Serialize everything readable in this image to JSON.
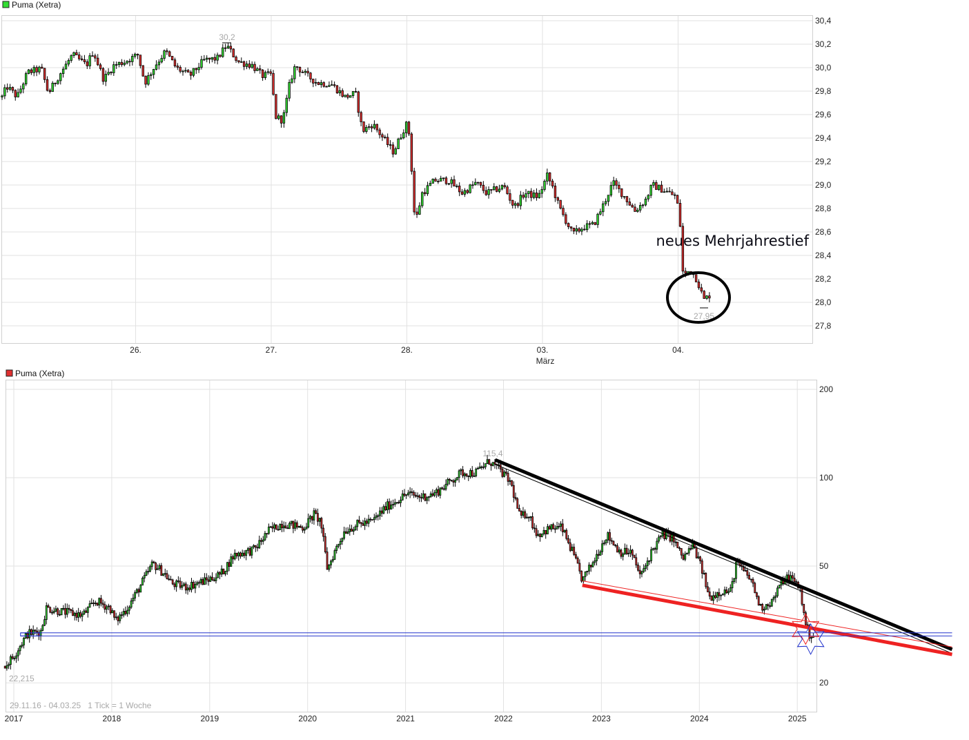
{
  "chart_data": [
    {
      "type": "candlestick",
      "legend": "Puma (Xetra)",
      "legend_color": "#33dd33",
      "x_tick_labels": [
        "26.",
        "27.",
        "28.",
        "03.",
        "04."
      ],
      "x_sub_label": "März",
      "y_tick_labels": [
        "30,4",
        "30,2",
        "30,0",
        "29,8",
        "29,6",
        "29,4",
        "29,2",
        "29,0",
        "28,8",
        "28,6",
        "28,4",
        "28,2",
        "28,0",
        "27,8"
      ],
      "ylim": [
        27.65,
        30.45
      ],
      "grid": true,
      "high_label": "30,2",
      "low_label": "27,95",
      "annotation_text": "neues Mehrjahrestief",
      "up_color": "#33dd33",
      "down_color": "#e03030",
      "price_path": [
        [
          "25.02. 09:00",
          29.75
        ],
        [
          "25.02. 09:18",
          29.84
        ],
        [
          "25.02. 09:57",
          29.75
        ],
        [
          "25.02. 10:36",
          29.96
        ],
        [
          "25.02. 11:28",
          29.99
        ],
        [
          "25.02. 11:54",
          29.78
        ],
        [
          "25.02. 12:33",
          29.93
        ],
        [
          "25.02. 13:25",
          30.11
        ],
        [
          "25.02. 14:17",
          30.02
        ],
        [
          "25.02. 14:43",
          30.14
        ],
        [
          "25.02. 15:22",
          29.9
        ],
        [
          "25.02. 16:01",
          30.02
        ],
        [
          "25.02. 16:40",
          30.05
        ],
        [
          "26.02. 09:01",
          30.11
        ],
        [
          "26.02. 09:27",
          29.87
        ],
        [
          "26.02. 10:06",
          30.02
        ],
        [
          "26.02. 10:45",
          30.14
        ],
        [
          "26.02. 11:24",
          30.0
        ],
        [
          "26.02. 12:16",
          29.93
        ],
        [
          "26.02. 13:08",
          30.06
        ],
        [
          "26.02. 14:00",
          30.08
        ],
        [
          "26.02. 14:34",
          30.19
        ],
        [
          "26.02. 15:18",
          30.05
        ],
        [
          "26.02. 16:10",
          30.02
        ],
        [
          "26.02. 16:49",
          29.93
        ],
        [
          "26.02. 17:20",
          29.94
        ],
        [
          "27.02. 09:10",
          29.58
        ],
        [
          "27.02. 09:36",
          29.55
        ],
        [
          "27.02. 10:02",
          29.87
        ],
        [
          "27.02. 10:23",
          30.02
        ],
        [
          "27.02. 11:07",
          29.93
        ],
        [
          "27.02. 11:46",
          29.87
        ],
        [
          "27.02. 12:38",
          29.86
        ],
        [
          "27.02. 13:30",
          29.75
        ],
        [
          "27.02. 14:09",
          29.78
        ],
        [
          "27.02. 14:35",
          29.46
        ],
        [
          "27.02. 15:14",
          29.52
        ],
        [
          "27.02. 15:53",
          29.4
        ],
        [
          "27.02. 16:32",
          29.28
        ],
        [
          "27.02. 17:19",
          29.52
        ],
        [
          "28.02. 09:06",
          29.4
        ],
        [
          "28.02. 09:14",
          28.87
        ],
        [
          "28.02. 09:25",
          28.69
        ],
        [
          "28.02. 09:50",
          28.93
        ],
        [
          "28.02. 10:37",
          29.04
        ],
        [
          "28.02. 11:29",
          29.04
        ],
        [
          "28.02. 12:21",
          28.93
        ],
        [
          "28.02. 13:13",
          29.02
        ],
        [
          "28.02. 13:52",
          28.93
        ],
        [
          "28.02. 14:57",
          28.99
        ],
        [
          "28.02. 15:36",
          28.81
        ],
        [
          "28.02. 16:15",
          28.93
        ],
        [
          "28.02. 17:07",
          28.9
        ],
        [
          "03.03. 09:10",
          29.08
        ],
        [
          "03.03. 09:29",
          28.99
        ],
        [
          "03.03. 09:55",
          28.81
        ],
        [
          "03.03. 10:46",
          28.58
        ],
        [
          "03.03. 11:25",
          28.64
        ],
        [
          "03.03. 12:04",
          28.66
        ],
        [
          "03.03. 12:43",
          28.84
        ],
        [
          "03.03. 13:17",
          29.02
        ],
        [
          "03.03. 14:01",
          28.9
        ],
        [
          "03.03. 14:40",
          28.78
        ],
        [
          "03.03. 15:19",
          28.87
        ],
        [
          "03.03. 15:45",
          29.0
        ],
        [
          "03.03. 16:24",
          28.96
        ],
        [
          "03.03. 17:16",
          28.9
        ],
        [
          "04.03. 09:01",
          28.64
        ],
        [
          "04.03. 09:11",
          28.22
        ],
        [
          "04.03. 09:38",
          28.28
        ],
        [
          "04.03. 10:04",
          28.19
        ],
        [
          "04.03. 10:29",
          28.02
        ],
        [
          "04.03. 10:50",
          28.06
        ]
      ]
    },
    {
      "type": "candlestick",
      "legend": "Puma (Xetra)",
      "legend_color": "#e03030",
      "x_tick_labels": [
        "2017",
        "2018",
        "2019",
        "2020",
        "2021",
        "2022",
        "2023",
        "2024",
        "2025"
      ],
      "y_tick_labels": [
        "200",
        "100",
        "50",
        "20"
      ],
      "y_scale": "log",
      "ylim": [
        16,
        220
      ],
      "grid": true,
      "high_label": "115,4",
      "low_label": "22,215",
      "footer": "29.11.16 - 04.03.25   1 Tick = 1 Woche",
      "up_color": "#33dd33",
      "down_color": "#e03030",
      "trend_lines": [
        {
          "color": "#000000",
          "style": "thick",
          "from": [
            "2021-12-01",
            115
          ],
          "to": [
            "2026-08-01",
            26
          ]
        },
        {
          "color": "#000000",
          "style": "thin",
          "from": [
            "2021-12-01",
            111
          ],
          "to": [
            "2026-08-01",
            25.2
          ]
        },
        {
          "color": "#ee2222",
          "style": "thick",
          "from": [
            "2022-10-22",
            43
          ],
          "to": [
            "2026-08-01",
            25
          ]
        },
        {
          "color": "#ee2222",
          "style": "thin",
          "from": [
            "2022-10-22",
            44.5
          ],
          "to": [
            "2026-08-01",
            26.5
          ]
        },
        {
          "color": "#2233cc",
          "style": "thin",
          "from": [
            "2017-01-26",
            29.6
          ],
          "to": [
            "2026-08-01",
            29.6
          ]
        },
        {
          "color": "#2233cc",
          "style": "thin",
          "from": [
            "2017-01-26",
            28.9
          ],
          "to": [
            "2026-08-01",
            28.9
          ]
        }
      ],
      "markers": [
        {
          "shape": "star",
          "color": "#ee2222",
          "date": "2025-02-01",
          "value": 30.5
        },
        {
          "shape": "star",
          "color": "#2233cc",
          "date": "2025-02-20",
          "value": 28.2
        }
      ],
      "price_path": [
        [
          "2016-11-29",
          22.8
        ],
        [
          "2017-01-01",
          24.7
        ],
        [
          "2017-01-26",
          27.0
        ],
        [
          "2017-02-21",
          29.4
        ],
        [
          "2017-04-12",
          30.0
        ],
        [
          "2017-05-02",
          36.0
        ],
        [
          "2017-06-28",
          35.0
        ],
        [
          "2017-09-14",
          34.0
        ],
        [
          "2017-11-04",
          38.0
        ],
        [
          "2017-12-26",
          36.0
        ],
        [
          "2018-01-15",
          32.4
        ],
        [
          "2018-02-28",
          36.0
        ],
        [
          "2018-04-06",
          41.0
        ],
        [
          "2018-06-03",
          51.0
        ],
        [
          "2018-07-18",
          47.0
        ],
        [
          "2018-08-12",
          43.6
        ],
        [
          "2018-10-03",
          42.5
        ],
        [
          "2018-12-21",
          44.7
        ],
        [
          "2019-02-12",
          47.0
        ],
        [
          "2019-04-02",
          54.5
        ],
        [
          "2019-06-18",
          57.0
        ],
        [
          "2019-08-09",
          66.0
        ],
        [
          "2019-10-01",
          70.0
        ],
        [
          "2019-12-16",
          67.5
        ],
        [
          "2020-01-25",
          75.0
        ],
        [
          "2020-02-19",
          71.0
        ],
        [
          "2020-03-15",
          48.7
        ],
        [
          "2020-04-10",
          55.8
        ],
        [
          "2020-05-18",
          66.0
        ],
        [
          "2020-07-09",
          69.5
        ],
        [
          "2020-08-30",
          71.0
        ],
        [
          "2020-10-20",
          79.5
        ],
        [
          "2021-01-06",
          88.0
        ],
        [
          "2021-02-27",
          86.0
        ],
        [
          "2021-04-18",
          88.0
        ],
        [
          "2021-06-09",
          96.0
        ],
        [
          "2021-07-28",
          104.0
        ],
        [
          "2021-09-19",
          104.0
        ],
        [
          "2021-11-10",
          114.0
        ],
        [
          "2021-12-19",
          106.0
        ],
        [
          "2022-01-28",
          96.0
        ],
        [
          "2022-03-04",
          73.0
        ],
        [
          "2022-04-01",
          76.0
        ],
        [
          "2022-05-07",
          64.0
        ],
        [
          "2022-06-28",
          67.5
        ],
        [
          "2022-08-06",
          67.5
        ],
        [
          "2022-09-15",
          55.8
        ],
        [
          "2022-10-22",
          44.7
        ],
        [
          "2022-11-30",
          51.4
        ],
        [
          "2023-01-21",
          64.0
        ],
        [
          "2023-03-12",
          55.8
        ],
        [
          "2023-04-20",
          55.8
        ],
        [
          "2023-05-28",
          46.0
        ],
        [
          "2023-07-06",
          55.8
        ],
        [
          "2023-08-15",
          64.0
        ],
        [
          "2023-09-22",
          62.6
        ],
        [
          "2023-11-01",
          53.0
        ],
        [
          "2023-12-09",
          59.0
        ],
        [
          "2024-01-16",
          47.0
        ],
        [
          "2024-02-06",
          39.0
        ],
        [
          "2024-03-19",
          41.0
        ],
        [
          "2024-04-28",
          41.0
        ],
        [
          "2024-05-18",
          51.4
        ],
        [
          "2024-07-13",
          44.7
        ],
        [
          "2024-08-16",
          36.0
        ],
        [
          "2024-09-30",
          38.0
        ],
        [
          "2024-11-08",
          44.7
        ],
        [
          "2024-12-03",
          46.0
        ],
        [
          "2025-01-12",
          42.0
        ],
        [
          "2025-01-25",
          34.2
        ],
        [
          "2025-02-12",
          29.4
        ],
        [
          "2025-03-04",
          29.0
        ]
      ]
    }
  ]
}
